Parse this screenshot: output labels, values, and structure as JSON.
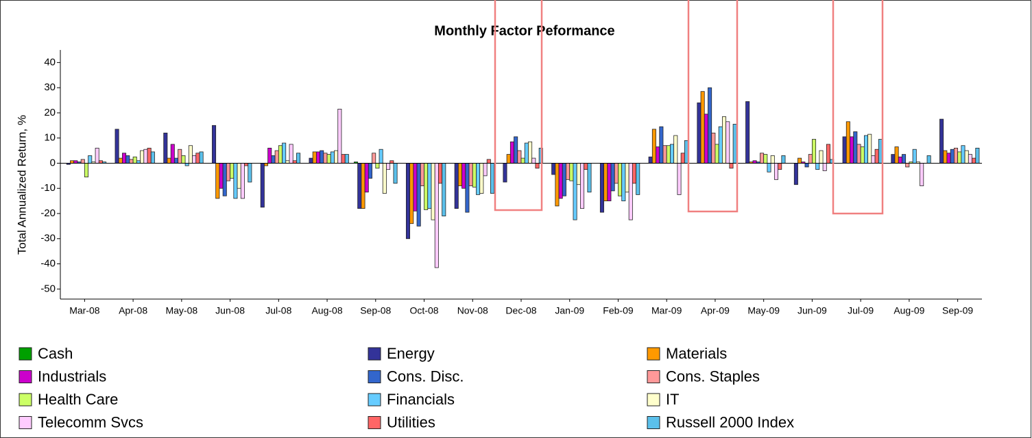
{
  "chart_data": {
    "type": "bar",
    "title": "Monthly Factor Peformance",
    "y_label": "Total Annualized Return, %",
    "categories": [
      "Mar-08",
      "Apr-08",
      "May-08",
      "Jun-08",
      "Jul-08",
      "Aug-08",
      "Sep-08",
      "Oct-08",
      "Nov-08",
      "Dec-08",
      "Jan-09",
      "Feb-09",
      "Mar-09",
      "Apr-09",
      "May-09",
      "Jun-09",
      "Jul-09",
      "Aug-09",
      "Sep-09"
    ],
    "ylim": [
      -54,
      45
    ],
    "yticks": [
      40,
      30,
      20,
      10,
      0,
      -10,
      -20,
      -30,
      -40,
      -50
    ],
    "series": [
      {
        "name": "Cash",
        "color": "#00a000",
        "values": [
          0,
          0,
          0,
          0,
          0,
          0,
          0.5,
          0,
          0,
          0,
          0,
          0,
          0,
          0,
          0,
          0,
          0,
          0,
          0
        ]
      },
      {
        "name": "Energy",
        "color": "#333399",
        "values": [
          -0.5,
          13.5,
          12,
          15,
          -17.5,
          2,
          -18,
          -30,
          -18,
          -7.5,
          -4.5,
          -19.5,
          2.5,
          24,
          24.5,
          -8.5,
          10.5,
          3.5,
          17.5
        ]
      },
      {
        "name": "Materials",
        "color": "#ff9900",
        "values": [
          1,
          2,
          2,
          -14,
          -1,
          4.5,
          -18,
          -24,
          -9,
          3.5,
          -17,
          -15,
          13.5,
          28.5,
          0.5,
          2,
          16.5,
          6.5,
          5
        ]
      },
      {
        "name": "Industrials",
        "color": "#cc00cc",
        "values": [
          1,
          4,
          7.5,
          -10,
          6,
          4.5,
          -11.5,
          -19,
          -10,
          8.5,
          -14,
          -15,
          6.5,
          19.5,
          1,
          0.5,
          10.5,
          2.5,
          4
        ]
      },
      {
        "name": "Cons. Disc.",
        "color": "#3366cc",
        "values": [
          0.5,
          3,
          2,
          -13,
          3,
          5,
          -6,
          -25,
          -19.5,
          10.5,
          -13,
          -11,
          14.5,
          30,
          0.5,
          -1.5,
          12.5,
          3.5,
          5.5
        ]
      },
      {
        "name": "Cons. Staples",
        "color": "#ff9999",
        "values": [
          1.5,
          1.5,
          5.5,
          -7,
          5,
          4,
          4,
          -9,
          -9,
          5,
          -6.5,
          -8,
          7,
          12,
          4,
          3.5,
          7.5,
          -1.5,
          6
        ]
      },
      {
        "name": "Health Care",
        "color": "#ccff66",
        "values": [
          -5.5,
          2.5,
          3,
          -6,
          7,
          3.5,
          -2,
          -18.5,
          -9.5,
          2,
          -7,
          -13,
          7,
          7.5,
          3.5,
          9.5,
          6.5,
          0.5,
          4.5
        ]
      },
      {
        "name": "Financials",
        "color": "#66ccff",
        "values": [
          3,
          1,
          -1,
          -14,
          8,
          4.5,
          5.5,
          -18,
          -12.5,
          8,
          -22.5,
          -15,
          7.5,
          14.5,
          -3.5,
          -2.5,
          11,
          5.5,
          7
        ]
      },
      {
        "name": "IT",
        "color": "#ffffcc",
        "values": [
          0.5,
          5,
          7,
          -10,
          1,
          5,
          -12,
          -22.5,
          -12,
          8.5,
          -8.5,
          -11.5,
          11,
          18.5,
          3,
          5,
          11.5,
          0.5,
          5
        ]
      },
      {
        "name": "Telecomm Svcs",
        "color": "#ffccff",
        "values": [
          6,
          5.5,
          3,
          -14,
          7.5,
          21.5,
          -2.5,
          -41.5,
          -5,
          2,
          -18,
          -22.5,
          -12.5,
          16.5,
          -6.5,
          -3,
          3,
          -9,
          3.5
        ]
      },
      {
        "name": "Utilities",
        "color": "#ff6666",
        "values": [
          1,
          6,
          4,
          -1,
          1,
          3.5,
          1,
          -8,
          1.5,
          -2,
          -2.5,
          -8,
          4,
          -2,
          -2.5,
          7.5,
          5.5,
          0,
          2
        ]
      },
      {
        "name": "Russell 2000 Index",
        "color": "#5bc0eb",
        "values": [
          0.5,
          4.5,
          4.5,
          -7.5,
          4,
          3.5,
          -8,
          -21,
          -12,
          6,
          -11.5,
          -12.5,
          9,
          15.5,
          3,
          1.5,
          9.5,
          3,
          6
        ]
      }
    ]
  }
}
